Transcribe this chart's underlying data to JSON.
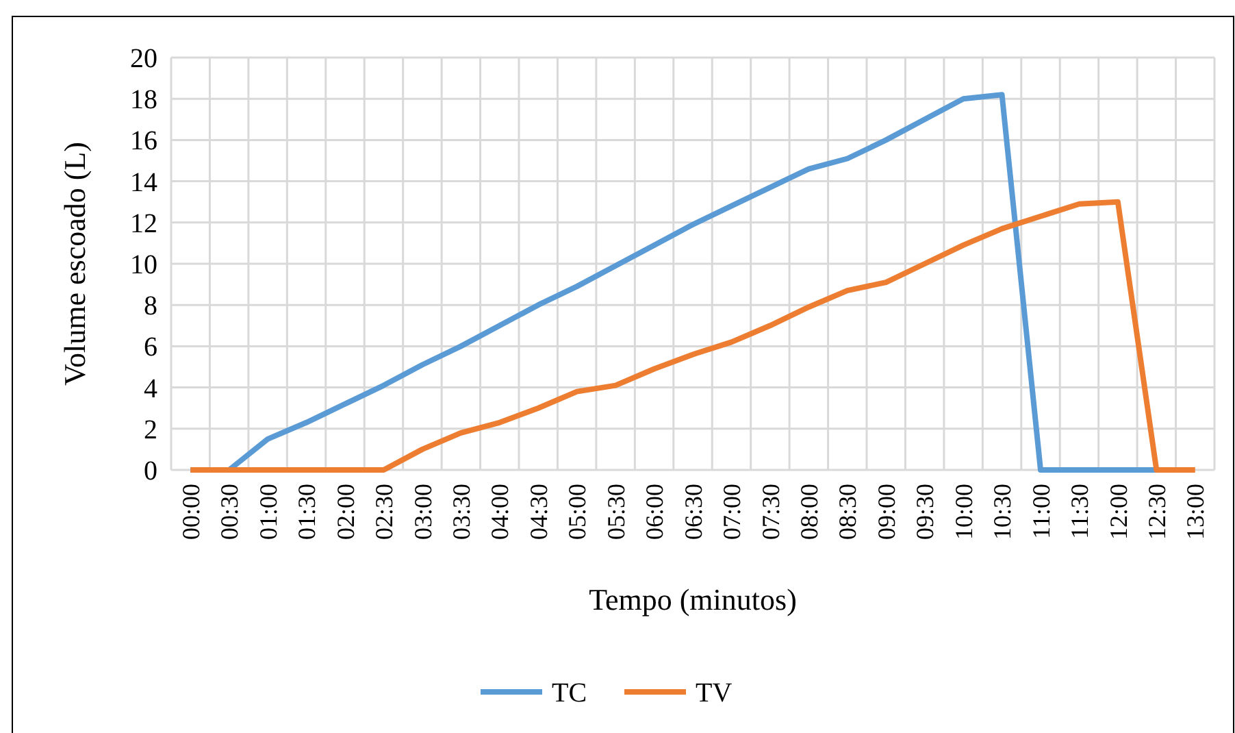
{
  "chart_data": {
    "type": "line",
    "xlabel": "Tempo (minutos)",
    "ylabel": "Volume escoado (L)",
    "categories": [
      "00:00",
      "00:30",
      "01:00",
      "01:30",
      "02:00",
      "02:30",
      "03:00",
      "03:30",
      "04:00",
      "04:30",
      "05:00",
      "05:30",
      "06:00",
      "06:30",
      "07:00",
      "07:30",
      "08:00",
      "08:30",
      "09:00",
      "09:30",
      "10:00",
      "10:30",
      "11:00",
      "11:30",
      "12:00",
      "12:30",
      "13:00"
    ],
    "series": [
      {
        "name": "TC",
        "color": "#5b9bd5",
        "values": [
          0,
          0,
          1.5,
          2.3,
          3.2,
          4.1,
          5.1,
          6.0,
          7.0,
          8.0,
          8.9,
          9.9,
          10.9,
          11.9,
          12.8,
          13.7,
          14.6,
          15.1,
          16.0,
          17.0,
          18.0,
          18.2,
          0,
          0,
          0,
          0,
          null
        ]
      },
      {
        "name": "TV",
        "color": "#ed7d31",
        "values": [
          0,
          0,
          0,
          0,
          0,
          0,
          1.0,
          1.8,
          2.3,
          3.0,
          3.8,
          4.1,
          4.9,
          5.6,
          6.2,
          7.0,
          7.9,
          8.7,
          9.1,
          10.0,
          10.9,
          11.7,
          12.3,
          12.9,
          13.0,
          0,
          0
        ]
      }
    ],
    "ylim": [
      0,
      20
    ],
    "yticks": [
      0,
      2,
      4,
      6,
      8,
      10,
      12,
      14,
      16,
      18,
      20
    ],
    "grid": true,
    "legend": "bottom",
    "marker": "none",
    "line_style": "solid"
  }
}
